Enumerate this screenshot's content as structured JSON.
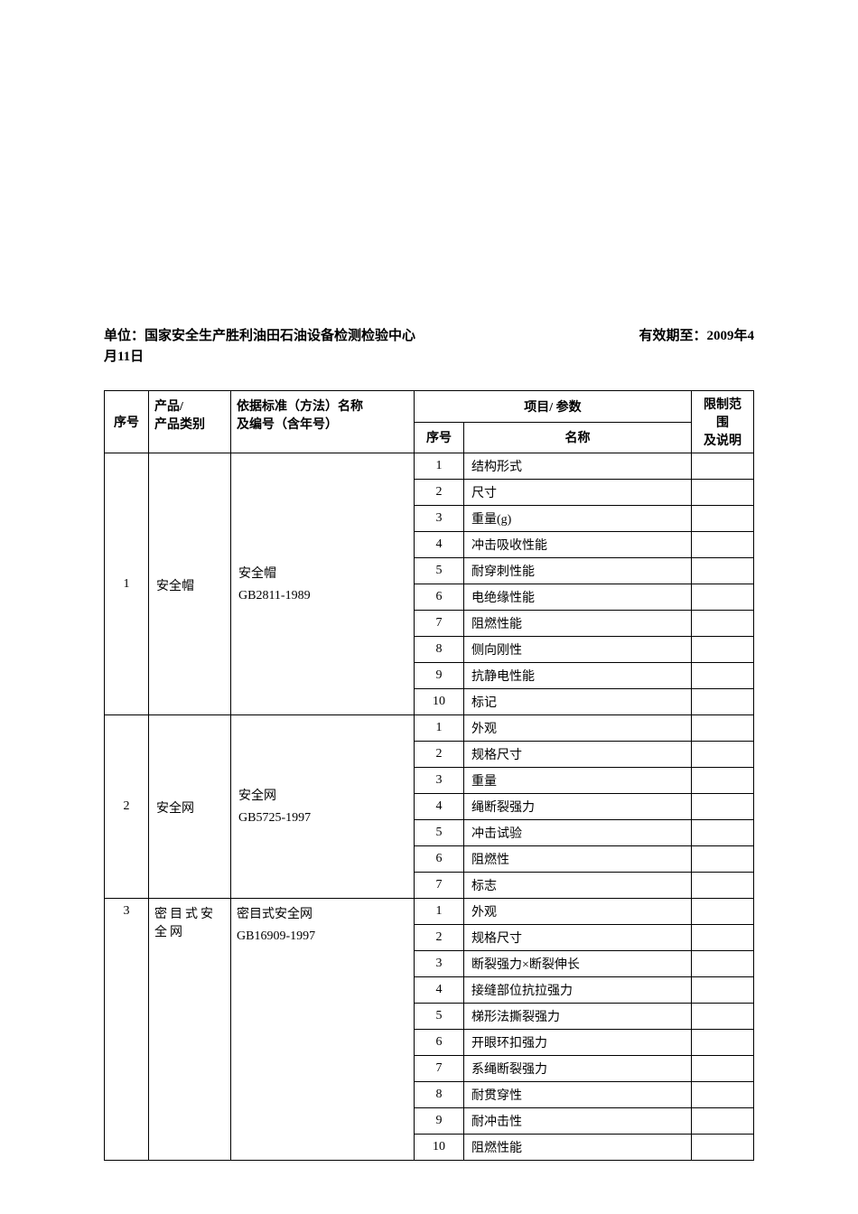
{
  "header": {
    "unit_label": "单位：",
    "unit_name": "国家安全生产胜利油田石油设备检测检验中心",
    "valid_label": "有效期至：",
    "valid_value_part1": "2009年4",
    "valid_value_part2": "月11日"
  },
  "table": {
    "headers": {
      "seq": "序号",
      "product": "产品/\n产品类别",
      "standard": "依据标准（方法）名称\n及编号（含年号）",
      "param_group": "项目/ 参数",
      "param_seq": "序号",
      "param_name": "名称",
      "limit": "限制范围\n及说明"
    },
    "rows": [
      {
        "seq": "1",
        "product": "安全帽",
        "standard_line1": "安全帽",
        "standard_line2": "GB2811-1989",
        "params": [
          {
            "n": "1",
            "name": "结构形式"
          },
          {
            "n": "2",
            "name": "尺寸"
          },
          {
            "n": "3",
            "name": "重量(g)"
          },
          {
            "n": "4",
            "name": "冲击吸收性能"
          },
          {
            "n": "5",
            "name": "耐穿刺性能"
          },
          {
            "n": "6",
            "name": "电绝缘性能"
          },
          {
            "n": "7",
            "name": "阻燃性能"
          },
          {
            "n": "8",
            "name": "侧向刚性"
          },
          {
            "n": "9",
            "name": "抗静电性能"
          },
          {
            "n": "10",
            "name": "标记"
          }
        ]
      },
      {
        "seq": "2",
        "product": "安全网",
        "standard_line1": "安全网",
        "standard_line2": "GB5725-1997",
        "params": [
          {
            "n": "1",
            "name": "外观"
          },
          {
            "n": "2",
            "name": "规格尺寸"
          },
          {
            "n": "3",
            "name": "重量"
          },
          {
            "n": "4",
            "name": "绳断裂强力"
          },
          {
            "n": "5",
            "name": "冲击试验"
          },
          {
            "n": "6",
            "name": "阻燃性"
          },
          {
            "n": "7",
            "name": "标志"
          }
        ]
      },
      {
        "seq": "3",
        "product": "密目式安全网",
        "standard_line1": "密目式安全网",
        "standard_line2": "GB16909-1997",
        "params": [
          {
            "n": "1",
            "name": "外观"
          },
          {
            "n": "2",
            "name": "规格尺寸"
          },
          {
            "n": "3",
            "name": "断裂强力×断裂伸长"
          },
          {
            "n": "4",
            "name": "接缝部位抗拉强力"
          },
          {
            "n": "5",
            "name": "梯形法撕裂强力"
          },
          {
            "n": "6",
            "name": "开眼环扣强力"
          },
          {
            "n": "7",
            "name": "系绳断裂强力"
          },
          {
            "n": "8",
            "name": "耐贯穿性"
          },
          {
            "n": "9",
            "name": "耐冲击性"
          },
          {
            "n": "10",
            "name": "阻燃性能"
          }
        ]
      }
    ]
  }
}
